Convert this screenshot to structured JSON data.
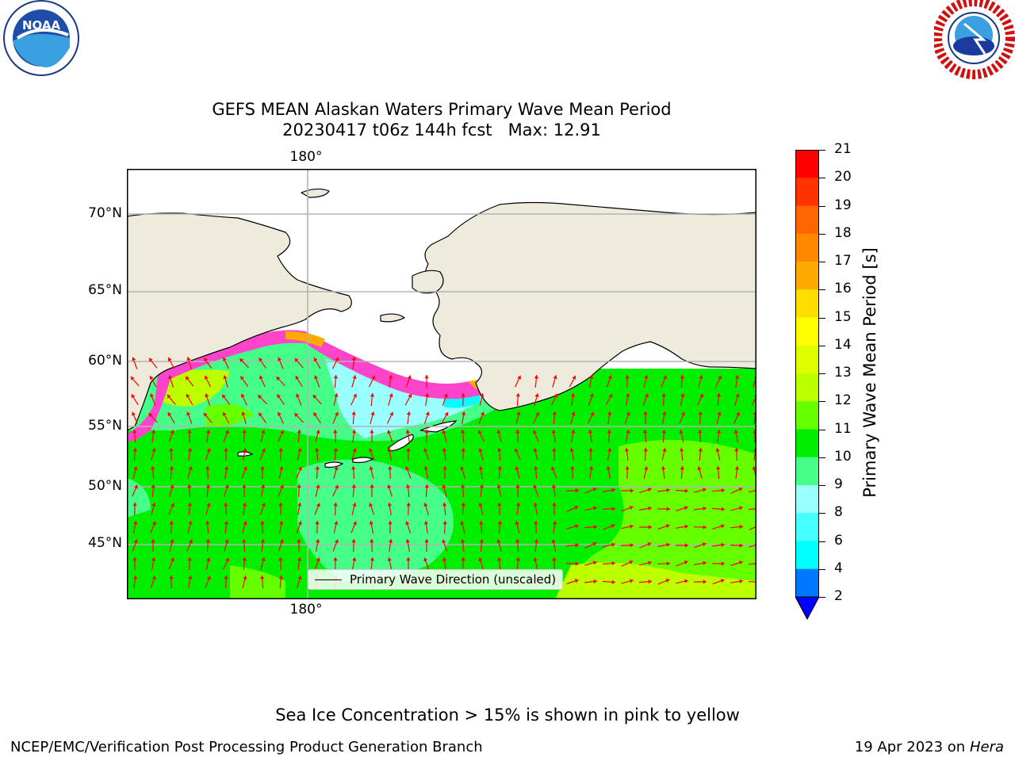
{
  "title": {
    "line1": "GEFS MEAN Alaskan Waters Primary Wave Mean Period",
    "line2": "20230417 t06z 144h fcst   Max: 12.91"
  },
  "logos": {
    "left": {
      "icon": "noaa-logo",
      "text": "NOAA",
      "ring_text": "NATIONAL OCEANIC AND ATMOSPHERIC ADMINISTRATION · U.S. DEPARTMENT OF COMMERCE"
    },
    "right": {
      "icon": "nws-logo",
      "ring_text": "NATIONAL WEATHER SERVICE"
    }
  },
  "map": {
    "lat_labels": [
      "70°N",
      "65°N",
      "60°N",
      "55°N",
      "50°N",
      "45°N"
    ],
    "lon_label_top": "180°",
    "lon_label_bottom": "180°",
    "legend_label": "Primary Wave Direction (unscaled)",
    "land_color": "#efebdc",
    "arrow_color": "#ff0000"
  },
  "colorbar": {
    "label": "Primary Wave Mean Period [s]",
    "ticks": [
      "21",
      "20",
      "19",
      "18",
      "17",
      "16",
      "15",
      "14",
      "13",
      "12",
      "11",
      "10",
      "9",
      "8",
      "6",
      "4",
      "2"
    ],
    "colors": [
      "#ff0000",
      "#ff3300",
      "#ff6600",
      "#ff8800",
      "#ffaa00",
      "#ffdd00",
      "#ffff00",
      "#ddff00",
      "#bbff00",
      "#66ff00",
      "#00ee00",
      "#44ff88",
      "#99ffff",
      "#44ffff",
      "#00ffff",
      "#0077ff"
    ],
    "extend_color": "#0000ff"
  },
  "notes": {
    "sea_ice": "Sea Ice Concentration > 15% is shown in pink to yellow"
  },
  "footer": {
    "left": "NCEP/EMC/Verification Post Processing Product Generation Branch",
    "right_date": "19 Apr 2023 on ",
    "right_host": "Hera"
  }
}
